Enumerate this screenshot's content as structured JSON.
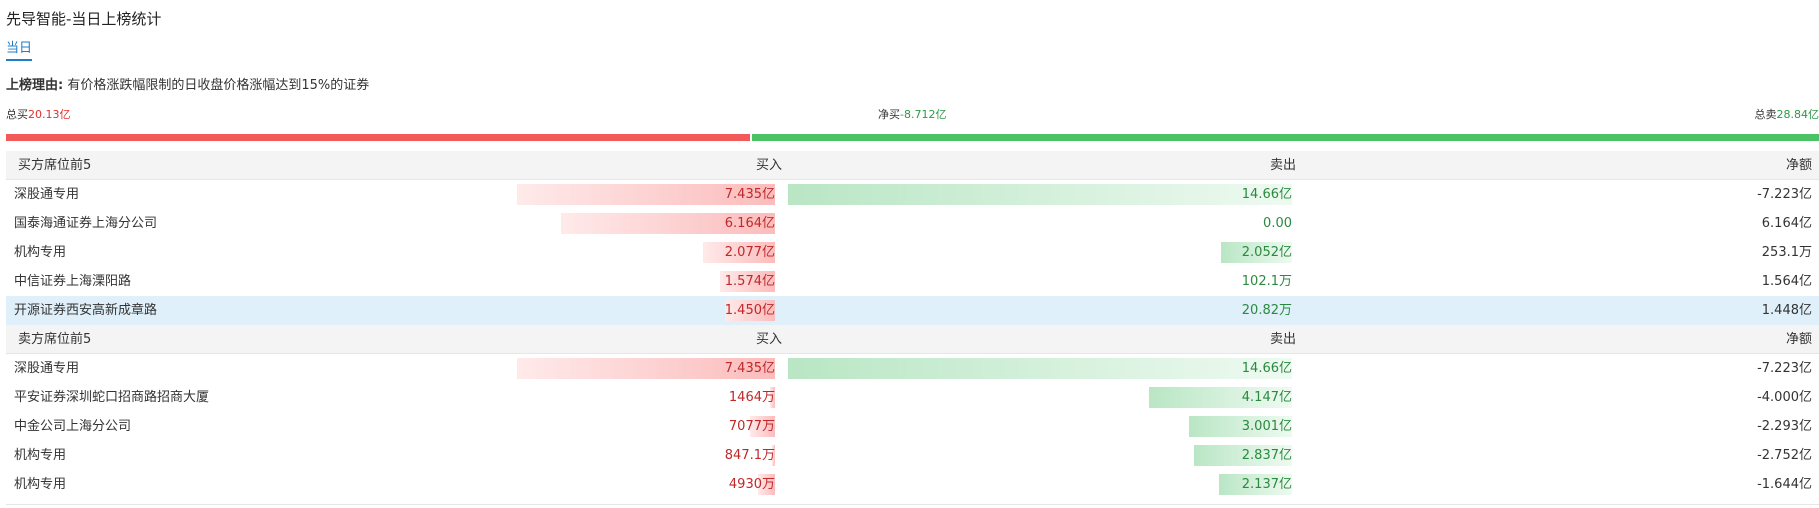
{
  "header": {
    "title": "先导智能-当日上榜统计",
    "tab": "当日"
  },
  "reason": {
    "label": "上榜理由:",
    "text": "有价格涨跌幅限制的日收盘价格涨幅达到15%的证券"
  },
  "summary": {
    "total_buy_label": "总买",
    "total_buy": {
      "value": 20.13,
      "label": "20.13亿"
    },
    "net_buy_label": "净买",
    "net_buy": {
      "value": -8.712,
      "label": "-8.712亿"
    },
    "total_sell_label": "总卖",
    "total_sell": {
      "value": 28.84,
      "label": "28.84亿"
    }
  },
  "sections": [
    {
      "title": "买方席位前5",
      "columns": [
        "买入",
        "卖出",
        "净额"
      ],
      "rows": [
        {
          "name": "深股通专用",
          "buy": {
            "value": 7.435,
            "label": "7.435亿"
          },
          "sell": {
            "value": 14.66,
            "label": "14.66亿"
          },
          "net": "-7.223亿"
        },
        {
          "name": "国泰海通证券上海分公司",
          "buy": {
            "value": 6.164,
            "label": "6.164亿"
          },
          "sell": {
            "value": 0,
            "label": "0.00"
          },
          "net": "6.164亿"
        },
        {
          "name": "机构专用",
          "buy": {
            "value": 2.077,
            "label": "2.077亿"
          },
          "sell": {
            "value": 2.052,
            "label": "2.052亿"
          },
          "net": "253.1万"
        },
        {
          "name": "中信证券上海溧阳路",
          "buy": {
            "value": 1.574,
            "label": "1.574亿"
          },
          "sell": {
            "value": 0.01021,
            "label": "102.1万"
          },
          "net": "1.564亿"
        },
        {
          "name": "开源证券西安高新成章路",
          "buy": {
            "value": 1.45,
            "label": "1.450亿"
          },
          "sell": {
            "value": 0.002082,
            "label": "20.82万"
          },
          "net": "1.448亿"
        }
      ]
    },
    {
      "title": "卖方席位前5",
      "columns": [
        "买入",
        "卖出",
        "净额"
      ],
      "rows": [
        {
          "name": "深股通专用",
          "buy": {
            "value": 7.435,
            "label": "7.435亿"
          },
          "sell": {
            "value": 14.66,
            "label": "14.66亿"
          },
          "net": "-7.223亿"
        },
        {
          "name": "平安证券深圳蛇口招商路招商大厦",
          "buy": {
            "value": 0.1464,
            "label": "1464万"
          },
          "sell": {
            "value": 4.147,
            "label": "4.147亿"
          },
          "net": "-4.000亿"
        },
        {
          "name": "中金公司上海分公司",
          "buy": {
            "value": 0.7077,
            "label": "7077万"
          },
          "sell": {
            "value": 3.001,
            "label": "3.001亿"
          },
          "net": "-2.293亿"
        },
        {
          "name": "机构专用",
          "buy": {
            "value": 0.08471,
            "label": "847.1万"
          },
          "sell": {
            "value": 2.837,
            "label": "2.837亿"
          },
          "net": "-2.752亿"
        },
        {
          "name": "机构专用",
          "buy": {
            "value": 0.493,
            "label": "4930万"
          },
          "sell": {
            "value": 2.137,
            "label": "2.137亿"
          },
          "net": "-1.644亿"
        }
      ]
    }
  ]
}
